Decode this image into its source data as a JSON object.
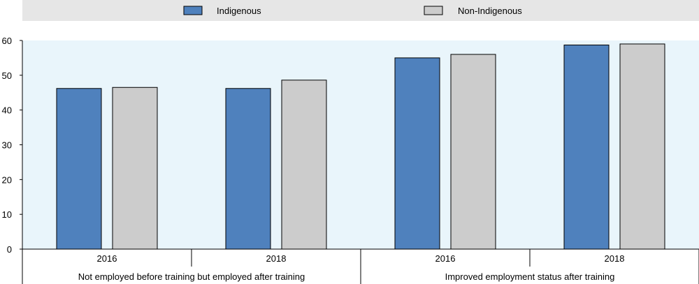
{
  "chart_data": {
    "type": "bar",
    "series": [
      {
        "name": "Indigenous",
        "color": "#4f81bd",
        "values": [
          46.2,
          46.2,
          55.0,
          58.7
        ]
      },
      {
        "name": "Non-Indigenous",
        "color": "#cccccc",
        "values": [
          46.5,
          48.6,
          56.0,
          59.0
        ]
      }
    ],
    "categories": [
      "2016",
      "2018",
      "2016",
      "2018"
    ],
    "groups": [
      {
        "label": "Not employed before training but employed after training",
        "span": [
          0,
          1
        ]
      },
      {
        "label": "Improved employment status after training",
        "span": [
          2,
          3
        ]
      }
    ],
    "ylim": [
      0,
      60
    ],
    "yticks": [
      0,
      10,
      20,
      30,
      40,
      50,
      60
    ],
    "grid": false,
    "legend_position": "top",
    "title": "",
    "xlabel": "",
    "ylabel": ""
  },
  "colors": {
    "plot_background": "#e9f5fb",
    "legend_background": "#e6e6e6"
  }
}
